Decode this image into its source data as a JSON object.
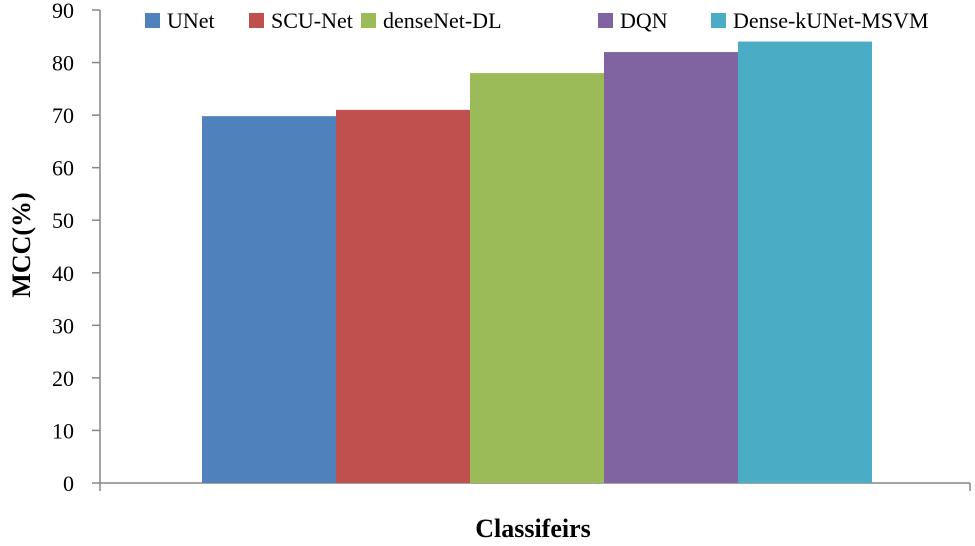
{
  "chart_data": {
    "type": "bar",
    "title": "",
    "xlabel": "Classifeirs",
    "ylabel": "MCC(%)",
    "ylim": [
      0,
      90
    ],
    "yticks": [
      0,
      10,
      20,
      30,
      40,
      50,
      60,
      70,
      80,
      90
    ],
    "grid": false,
    "legend_position": "top",
    "series": [
      {
        "name": "UNet",
        "value": 69.8,
        "color": "#4f81bd"
      },
      {
        "name": "SCU-Net",
        "value": 71,
        "color": "#c0504d"
      },
      {
        "name": "denseNet-DL",
        "value": 78,
        "color": "#9bbb59"
      },
      {
        "name": "DQN",
        "value": 82,
        "color": "#8064a2"
      },
      {
        "name": "Dense-kUNet-MSVM",
        "value": 84,
        "color": "#4bacc6"
      }
    ]
  }
}
